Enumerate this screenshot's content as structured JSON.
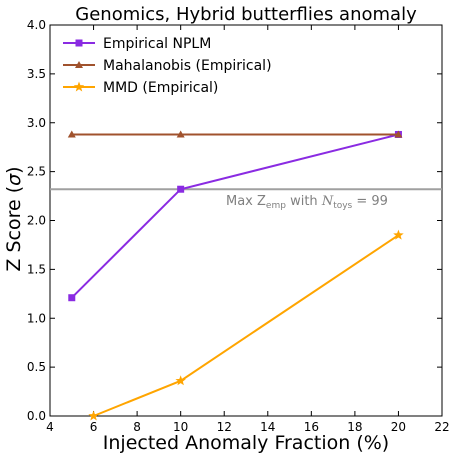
{
  "chart_data": {
    "type": "line",
    "title": "Genomics, Hybrid butterflies anomaly",
    "xlabel": "Injected Anomaly Fraction (%)",
    "ylabel_main": "Z Score (",
    "ylabel_symbol": "σ",
    "ylabel_close": ")",
    "xlim": [
      4,
      22
    ],
    "ylim": [
      0.0,
      4.0
    ],
    "xticks": [
      4,
      6,
      8,
      10,
      12,
      14,
      16,
      18,
      20,
      22
    ],
    "yticks": [
      0.0,
      0.5,
      1.0,
      1.5,
      2.0,
      2.5,
      3.0,
      3.5,
      4.0
    ],
    "xtick_labels": [
      "4",
      "6",
      "8",
      "10",
      "12",
      "14",
      "16",
      "18",
      "20",
      "22"
    ],
    "ytick_labels": [
      "0.0",
      "0.5",
      "1.0",
      "1.5",
      "2.0",
      "2.5",
      "3.0",
      "3.5",
      "4.0"
    ],
    "grid": false,
    "legend_position": "top-left",
    "series": [
      {
        "name": "Empirical NPLM",
        "color": "#8a2be2",
        "marker": "square",
        "x": [
          5,
          10,
          20
        ],
        "y": [
          1.21,
          2.32,
          2.88
        ]
      },
      {
        "name": "Mahalanobis (Empirical)",
        "color": "#a0522d",
        "marker": "triangle",
        "x": [
          5,
          10,
          20
        ],
        "y": [
          2.88,
          2.88,
          2.88
        ]
      },
      {
        "name": "MMD (Empirical)",
        "color": "#ffa500",
        "marker": "star",
        "x": [
          6,
          10,
          20
        ],
        "y": [
          0.0,
          0.36,
          1.85
        ]
      }
    ],
    "reference_line": {
      "y": 2.32,
      "color": "#a0a0a0",
      "label_main": "Max Z",
      "label_sub": "emp",
      "label_mid": " with ",
      "label_n": "N",
      "label_nsub": "toys",
      "label_end": " = 99"
    }
  }
}
